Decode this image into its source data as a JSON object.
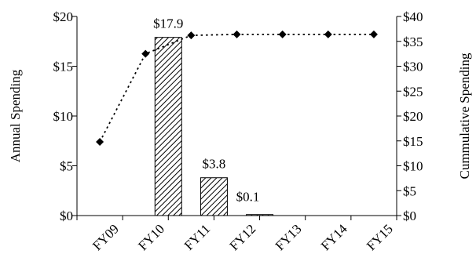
{
  "chart_data": {
    "type": "bar",
    "categories": [
      "FY09",
      "FY10",
      "FY11",
      "FY12",
      "FY13",
      "FY14",
      "FY15"
    ],
    "series": [
      {
        "name": "Annual Spending",
        "type": "bar",
        "axis": "left",
        "values": [
          null,
          17.9,
          3.8,
          0.1,
          0,
          0,
          0
        ],
        "data_labels": [
          "",
          "$17.9",
          "$3.8",
          "$0.1",
          "",
          "",
          ""
        ]
      },
      {
        "name": "Cummulative Spending",
        "type": "line",
        "axis": "right",
        "values": [
          14.8,
          32.5,
          36.2,
          36.4,
          36.4,
          36.4,
          36.4
        ]
      }
    ],
    "ylabel": "Annual Spending",
    "y2label": "Cummulative Spending",
    "ylim": [
      0,
      20
    ],
    "y2lim": [
      0,
      40
    ],
    "yticks": [
      "$0",
      "$5",
      "$10",
      "$15",
      "$20"
    ],
    "y2ticks": [
      "$0",
      "$5",
      "$10",
      "$15",
      "$20",
      "$25",
      "$30",
      "$35",
      "$40"
    ],
    "grid": false,
    "colors": {
      "bar_stroke": "#000000",
      "hatch": "#000000",
      "line": "#000000"
    }
  }
}
